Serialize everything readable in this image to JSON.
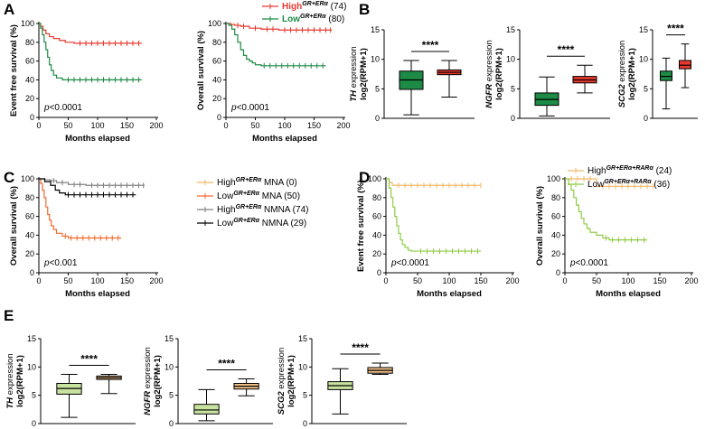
{
  "figure": {
    "panel_labels": [
      "A",
      "B",
      "C",
      "D",
      "E"
    ],
    "time_axis_label": "Months elapsed",
    "expression_unit": "log2(RPM+1)",
    "expression_suffix": " expression",
    "significance": "****"
  },
  "colors": {
    "high_a": "#e8392e",
    "low_a": "#1d8a45",
    "box_low_b": "#1d8a45",
    "box_high_b": "#e8392e",
    "high_c": "#f5b867",
    "low_c": "#f26a2e",
    "high_c_nmna": "#808080",
    "low_c_nmna": "#000000",
    "high_d": "#f5b867",
    "low_d": "#8fcc45",
    "box_low_e": "#c8e3a0",
    "box_high_e": "#f2c089"
  },
  "chart_data": [
    {
      "id": "A1",
      "panel": "A",
      "type": "line",
      "subtype": "kaplan-meier",
      "ylabel": "Event free survival (%)",
      "xlabel": "Months elapsed",
      "xlim": [
        0,
        200
      ],
      "ylim": [
        0,
        100
      ],
      "xticks": [
        0,
        50,
        100,
        150,
        200
      ],
      "yticks": [
        0,
        20,
        40,
        60,
        80,
        100
      ],
      "pvalue": "p<0.0001",
      "series": [
        {
          "name": "High",
          "color": "#e8392e",
          "points": [
            [
              0,
              100
            ],
            [
              3,
              97
            ],
            [
              7,
              93
            ],
            [
              12,
              89
            ],
            [
              18,
              86
            ],
            [
              25,
              84
            ],
            [
              35,
              82
            ],
            [
              45,
              80
            ],
            [
              60,
              79
            ],
            [
              175,
              79
            ]
          ],
          "censor": [
            70,
            80,
            90,
            100,
            110,
            120,
            130,
            140,
            150,
            160,
            170
          ]
        },
        {
          "name": "Low",
          "color": "#1d8a45",
          "points": [
            [
              0,
              100
            ],
            [
              3,
              95
            ],
            [
              6,
              88
            ],
            [
              9,
              80
            ],
            [
              12,
              72
            ],
            [
              15,
              64
            ],
            [
              18,
              56
            ],
            [
              21,
              50
            ],
            [
              25,
              45
            ],
            [
              30,
              42
            ],
            [
              40,
              40
            ],
            [
              175,
              40
            ]
          ],
          "censor": [
            50,
            60,
            70,
            80,
            90,
            100,
            110,
            120,
            130,
            140,
            150,
            160,
            170
          ]
        }
      ]
    },
    {
      "id": "A2",
      "panel": "A",
      "type": "line",
      "subtype": "kaplan-meier",
      "ylabel": "Overall survival (%)",
      "xlabel": "Months elapsed",
      "xlim": [
        0,
        200
      ],
      "ylim": [
        0,
        100
      ],
      "xticks": [
        0,
        50,
        100,
        150,
        200
      ],
      "yticks": [
        0,
        20,
        40,
        60,
        80,
        100
      ],
      "pvalue": "p<0.0001",
      "series": [
        {
          "name": "High",
          "color": "#e8392e",
          "points": [
            [
              0,
              100
            ],
            [
              8,
              99
            ],
            [
              15,
              98
            ],
            [
              25,
              97
            ],
            [
              40,
              95
            ],
            [
              60,
              94
            ],
            [
              90,
              93
            ],
            [
              180,
              93
            ]
          ],
          "censor": [
            20,
            30,
            50,
            70,
            80,
            100,
            110,
            120,
            130,
            140,
            150,
            160,
            170,
            178
          ]
        },
        {
          "name": "Low",
          "color": "#1d8a45",
          "points": [
            [
              0,
              100
            ],
            [
              5,
              98
            ],
            [
              10,
              94
            ],
            [
              15,
              88
            ],
            [
              20,
              80
            ],
            [
              25,
              72
            ],
            [
              30,
              66
            ],
            [
              35,
              62
            ],
            [
              40,
              60
            ],
            [
              45,
              58
            ],
            [
              50,
              56
            ],
            [
              60,
              55
            ],
            [
              170,
              55
            ]
          ],
          "censor": [
            65,
            75,
            85,
            95,
            105,
            115,
            125,
            135,
            145,
            155,
            165
          ]
        }
      ],
      "legend": {
        "position": "top-right",
        "entries": [
          {
            "name": "High",
            "superscript": "GR+ERα",
            "count": "(74)",
            "color": "#e8392e"
          },
          {
            "name": "Low",
            "superscript": "GR+ERα",
            "count": "(80)",
            "color": "#1d8a45"
          }
        ]
      }
    },
    {
      "id": "B1",
      "panel": "B",
      "type": "boxplot",
      "gene": "TH",
      "ylim": [
        0,
        15
      ],
      "yticks": [
        0,
        5,
        10,
        15
      ],
      "boxes": [
        {
          "group": "Low",
          "color": "#1d8a45",
          "min": 0.6,
          "q1": 4.9,
          "median": 6.5,
          "q3": 8.0,
          "max": 9.8
        },
        {
          "group": "High",
          "color": "#e8392e",
          "min": 3.6,
          "q1": 7.4,
          "median": 7.8,
          "q3": 8.2,
          "max": 9.8
        }
      ]
    },
    {
      "id": "B2",
      "panel": "B",
      "type": "boxplot",
      "gene": "NGFR",
      "ylim": [
        0,
        15
      ],
      "yticks": [
        0,
        5,
        10,
        15
      ],
      "boxes": [
        {
          "group": "Low",
          "color": "#1d8a45",
          "min": 0.4,
          "q1": 2.2,
          "median": 3.2,
          "q3": 4.3,
          "max": 7.0
        },
        {
          "group": "High",
          "color": "#e8392e",
          "min": 4.3,
          "q1": 6.0,
          "median": 6.5,
          "q3": 7.1,
          "max": 9.0
        }
      ]
    },
    {
      "id": "B3",
      "panel": "B",
      "type": "boxplot",
      "gene": "SCG2",
      "ylim": [
        0,
        15
      ],
      "yticks": [
        0,
        5,
        10,
        15
      ],
      "boxes": [
        {
          "group": "Low",
          "color": "#1d8a45",
          "min": 1.6,
          "q1": 6.4,
          "median": 7.1,
          "q3": 8.0,
          "max": 10.2
        },
        {
          "group": "High",
          "color": "#e8392e",
          "min": 5.2,
          "q1": 8.4,
          "median": 9.0,
          "q3": 9.8,
          "max": 12.6
        }
      ]
    },
    {
      "id": "C",
      "panel": "C",
      "type": "line",
      "subtype": "kaplan-meier",
      "ylabel": "Overall survival (%)",
      "xlabel": "Months elapsed",
      "xlim": [
        0,
        200
      ],
      "ylim": [
        0,
        100
      ],
      "xticks": [
        0,
        50,
        100,
        150,
        200
      ],
      "yticks": [
        0,
        20,
        40,
        60,
        80,
        100
      ],
      "pvalue": "p<0.001",
      "series": [
        {
          "name": "Low MNA",
          "color": "#f26a2e",
          "points": [
            [
              0,
              100
            ],
            [
              3,
              95
            ],
            [
              6,
              88
            ],
            [
              9,
              80
            ],
            [
              12,
              70
            ],
            [
              15,
              62
            ],
            [
              18,
              56
            ],
            [
              21,
              50
            ],
            [
              25,
              46
            ],
            [
              30,
              42
            ],
            [
              40,
              39
            ],
            [
              50,
              37
            ],
            [
              140,
              37
            ]
          ],
          "censor": [
            45,
            55,
            65,
            75,
            85,
            95,
            105,
            115,
            125,
            135
          ]
        },
        {
          "name": "High NMNA",
          "color": "#808080",
          "points": [
            [
              0,
              100
            ],
            [
              10,
              99
            ],
            [
              20,
              98
            ],
            [
              30,
              96
            ],
            [
              50,
              94
            ],
            [
              80,
              93
            ],
            [
              180,
              93
            ]
          ],
          "censor": [
            25,
            40,
            60,
            70,
            90,
            100,
            110,
            120,
            130,
            140,
            150,
            160,
            170,
            178
          ]
        },
        {
          "name": "Low NMNA",
          "color": "#000000",
          "points": [
            [
              0,
              100
            ],
            [
              10,
              97
            ],
            [
              20,
              93
            ],
            [
              28,
              88
            ],
            [
              35,
              85
            ],
            [
              45,
              83
            ],
            [
              165,
              83
            ]
          ],
          "censor": [
            50,
            60,
            70,
            80,
            90,
            100,
            110,
            120,
            130,
            140,
            150,
            160
          ]
        }
      ],
      "legend": {
        "position": "right",
        "entries": [
          {
            "name": "High",
            "superscript": "GR+ERα",
            "label": "MNA",
            "count": "(0)",
            "color": "#f5b867"
          },
          {
            "name": "Low",
            "superscript": "GR+ERα",
            "label": "MNA",
            "count": "(50)",
            "color": "#f26a2e"
          },
          {
            "name": "High",
            "superscript": "GR+ERα",
            "label": "NMNA",
            "count": "(74)",
            "color": "#808080"
          },
          {
            "name": "Low",
            "superscript": "GR+ERα",
            "label": "NMNA",
            "count": "(29)",
            "color": "#000000"
          }
        ]
      }
    },
    {
      "id": "D1",
      "panel": "D",
      "type": "line",
      "subtype": "kaplan-meier",
      "ylabel": "Event free survival (%)",
      "xlabel": "Months elapsed",
      "xlim": [
        0,
        200
      ],
      "ylim": [
        0,
        100
      ],
      "xticks": [
        0,
        50,
        100,
        150,
        200
      ],
      "yticks": [
        0,
        20,
        40,
        60,
        80,
        100
      ],
      "pvalue": "p<0.0001",
      "series": [
        {
          "name": "High",
          "color": "#f5b867",
          "points": [
            [
              0,
              100
            ],
            [
              5,
              96
            ],
            [
              10,
              93
            ],
            [
              150,
              93
            ]
          ],
          "censor": [
            20,
            30,
            40,
            50,
            60,
            70,
            80,
            90,
            100,
            110,
            120,
            130,
            140,
            150
          ]
        },
        {
          "name": "Low",
          "color": "#8fcc45",
          "points": [
            [
              0,
              100
            ],
            [
              5,
              90
            ],
            [
              8,
              80
            ],
            [
              11,
              70
            ],
            [
              14,
              60
            ],
            [
              17,
              50
            ],
            [
              20,
              42
            ],
            [
              23,
              35
            ],
            [
              26,
              30
            ],
            [
              30,
              27
            ],
            [
              35,
              24
            ],
            [
              40,
              23
            ],
            [
              150,
              23
            ]
          ],
          "censor": [
            55,
            65,
            75,
            85,
            95,
            105,
            115,
            125,
            135,
            145
          ]
        }
      ]
    },
    {
      "id": "D2",
      "panel": "D",
      "type": "line",
      "subtype": "kaplan-meier",
      "ylabel": "Overall survival (%)",
      "xlabel": "Months elapsed",
      "xlim": [
        0,
        200
      ],
      "ylim": [
        0,
        100
      ],
      "xticks": [
        0,
        50,
        100,
        150,
        200
      ],
      "yticks": [
        0,
        20,
        40,
        60,
        80,
        100
      ],
      "pvalue": "p<0.0001",
      "series": [
        {
          "name": "High",
          "color": "#f5b867",
          "points": [
            [
              0,
              100
            ],
            [
              45,
              100
            ],
            [
              50,
              92
            ],
            [
              140,
              92
            ]
          ],
          "censor": [
            10,
            20,
            30,
            40,
            60,
            70,
            80,
            90,
            100,
            110,
            120,
            130,
            140
          ]
        },
        {
          "name": "Low",
          "color": "#8fcc45",
          "points": [
            [
              0,
              100
            ],
            [
              6,
              94
            ],
            [
              10,
              88
            ],
            [
              14,
              80
            ],
            [
              18,
              72
            ],
            [
              22,
              65
            ],
            [
              26,
              58
            ],
            [
              30,
              52
            ],
            [
              35,
              47
            ],
            [
              40,
              43
            ],
            [
              50,
              40
            ],
            [
              60,
              37
            ],
            [
              70,
              35
            ],
            [
              130,
              35
            ]
          ],
          "censor": [
            65,
            75,
            85,
            95,
            105,
            115,
            125
          ]
        }
      ],
      "legend": {
        "position": "top",
        "entries": [
          {
            "name": "High",
            "superscript": "GR+ERα+RARα",
            "count": "(24)",
            "color": "#f5b867"
          },
          {
            "name": "Low",
            "superscript": "GR+ERα+RARα",
            "count": "(36)",
            "color": "#8fcc45"
          }
        ]
      }
    },
    {
      "id": "E1",
      "panel": "E",
      "type": "boxplot",
      "gene": "TH",
      "ylim": [
        0,
        15
      ],
      "yticks": [
        0,
        5,
        10,
        15
      ],
      "boxes": [
        {
          "group": "Low",
          "color": "#c8e3a0",
          "min": 1.1,
          "q1": 5.2,
          "median": 6.2,
          "q3": 7.1,
          "max": 8.7
        },
        {
          "group": "High",
          "color": "#f2c089",
          "min": 5.3,
          "q1": 7.8,
          "median": 8.1,
          "q3": 8.4,
          "max": 8.7
        }
      ]
    },
    {
      "id": "E2",
      "panel": "E",
      "type": "boxplot",
      "gene": "NGFR",
      "ylim": [
        0,
        15
      ],
      "yticks": [
        0,
        5,
        10,
        15
      ],
      "boxes": [
        {
          "group": "Low",
          "color": "#c8e3a0",
          "min": 0.5,
          "q1": 1.7,
          "median": 2.4,
          "q3": 3.4,
          "max": 6.0
        },
        {
          "group": "High",
          "color": "#f2c089",
          "min": 4.9,
          "q1": 6.1,
          "median": 6.6,
          "q3": 7.1,
          "max": 7.9
        }
      ]
    },
    {
      "id": "E3",
      "panel": "E",
      "type": "boxplot",
      "gene": "SCG2",
      "ylim": [
        0,
        15
      ],
      "yticks": [
        0,
        5,
        10,
        15
      ],
      "boxes": [
        {
          "group": "Low",
          "color": "#c8e3a0",
          "min": 1.7,
          "q1": 6.0,
          "median": 6.7,
          "q3": 7.4,
          "max": 9.7
        },
        {
          "group": "High",
          "color": "#f2c089",
          "min": 8.7,
          "q1": 8.9,
          "median": 9.4,
          "q3": 9.9,
          "max": 10.7
        }
      ]
    }
  ]
}
